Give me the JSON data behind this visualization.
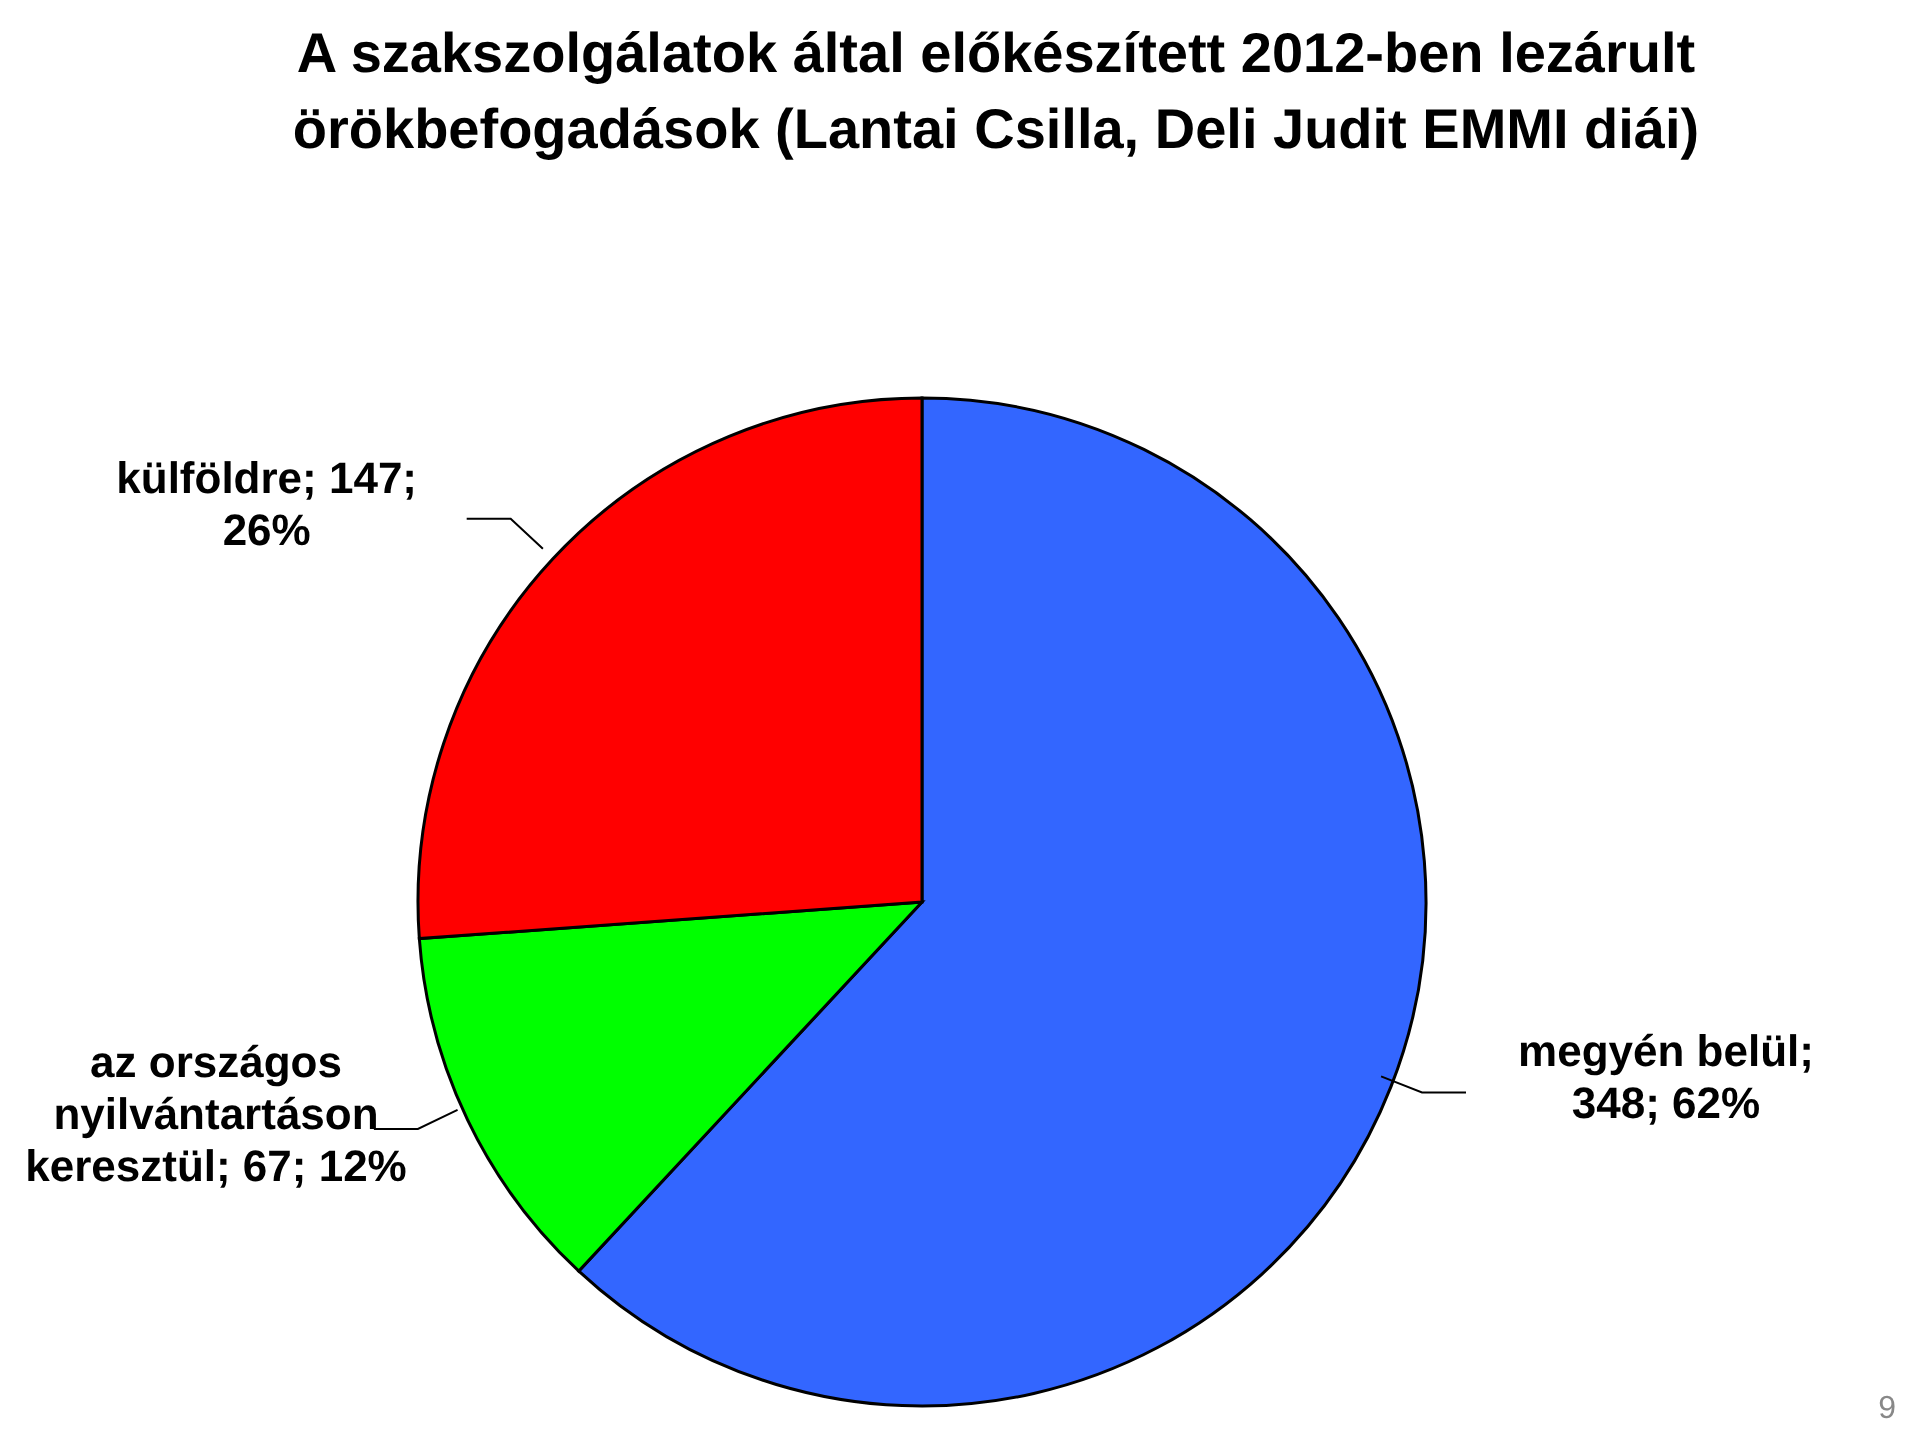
{
  "chart_data": {
    "type": "pie",
    "title": "A szakszolgálatok által előkészített 2012-ben lezárult örökbefogadások (Lantai Csilla, Deli Judit EMMI diái)",
    "categories": [
      "megyén belül",
      "az országos nyilvántartáson keresztül",
      "külföldre"
    ],
    "values": [
      348,
      67,
      147
    ],
    "colors": [
      "#3366ff",
      "#00ff00",
      "#ff0000"
    ],
    "value_labels": [
      "; 348; 62%",
      "; 67; 12%",
      "; 147; 26%"
    ],
    "legend": false,
    "annotations": [
      "9"
    ]
  }
}
